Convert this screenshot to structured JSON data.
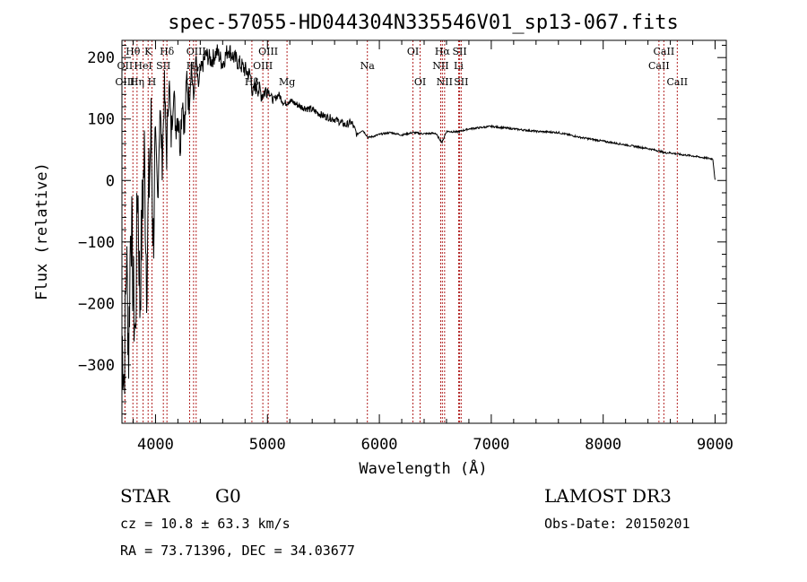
{
  "chart_data": {
    "type": "line",
    "title": "spec-57055-HD044304N335546V01_sp13-067.fits",
    "xlabel": "Wavelength (Å)",
    "ylabel": "Flux (relative)",
    "xlim": [
      3700,
      9100
    ],
    "ylim": [
      -395,
      228
    ],
    "xticks": [
      4000,
      5000,
      6000,
      7000,
      8000,
      9000
    ],
    "yticks": [
      -300,
      -200,
      -100,
      0,
      100,
      200
    ],
    "series": [
      {
        "name": "spectrum",
        "x": [
          3700,
          3720,
          3740,
          3760,
          3780,
          3800,
          3820,
          3840,
          3860,
          3880,
          3900,
          3920,
          3940,
          3960,
          3980,
          4000,
          4020,
          4040,
          4060,
          4080,
          4100,
          4120,
          4140,
          4160,
          4180,
          4200,
          4220,
          4240,
          4260,
          4280,
          4300,
          4320,
          4340,
          4360,
          4380,
          4400,
          4450,
          4500,
          4550,
          4600,
          4650,
          4700,
          4750,
          4800,
          4850,
          4870,
          4900,
          4950,
          5000,
          5050,
          5100,
          5150,
          5200,
          5300,
          5400,
          5500,
          5600,
          5700,
          5750,
          5800,
          5850,
          5900,
          5950,
          6000,
          6100,
          6200,
          6300,
          6400,
          6500,
          6560,
          6600,
          6700,
          6800,
          6900,
          7000,
          7100,
          7200,
          7300,
          7400,
          7500,
          7600,
          7700,
          7800,
          7900,
          8000,
          8100,
          8200,
          8300,
          8400,
          8500,
          8550,
          8600,
          8700,
          8800,
          8900,
          8980,
          9000
        ],
        "y": [
          -250,
          -320,
          -120,
          -280,
          -40,
          -180,
          -260,
          10,
          -200,
          -60,
          40,
          -150,
          -20,
          80,
          -100,
          60,
          -30,
          120,
          30,
          150,
          40,
          170,
          70,
          150,
          90,
          110,
          60,
          140,
          80,
          170,
          120,
          190,
          130,
          200,
          150,
          175,
          205,
          195,
          210,
          190,
          215,
          200,
          190,
          180,
          170,
          140,
          155,
          140,
          150,
          130,
          140,
          125,
          130,
          120,
          115,
          105,
          100,
          90,
          95,
          75,
          82,
          70,
          72,
          75,
          78,
          74,
          78,
          76,
          77,
          62,
          80,
          79,
          84,
          86,
          88,
          86,
          84,
          82,
          80,
          79,
          78,
          74,
          70,
          67,
          64,
          61,
          58,
          55,
          52,
          48,
          45,
          45,
          42,
          40,
          37,
          35,
          0
        ]
      }
    ],
    "lines": [
      {
        "name": "Hθ",
        "w": 3798,
        "row": 1
      },
      {
        "name": "OII",
        "w": 3727,
        "row": 2
      },
      {
        "name": "OIII",
        "w": 3727,
        "row": 3
      },
      {
        "name": "K",
        "w": 3934,
        "row": 1
      },
      {
        "name": "HeI",
        "w": 3889,
        "row": 2
      },
      {
        "name": "Hη",
        "w": 3835,
        "row": 3
      },
      {
        "name": "SII",
        "w": 4070,
        "row": 2
      },
      {
        "name": "H",
        "w": 3968,
        "row": 3
      },
      {
        "name": "Hδ",
        "w": 4102,
        "row": 1
      },
      {
        "name": "OIII",
        "w": 4363,
        "row": 1
      },
      {
        "name": "Hγ",
        "w": 4340,
        "row": 2
      },
      {
        "name": "G",
        "w": 4305,
        "row": 3
      },
      {
        "name": "OIII",
        "w": 5007,
        "row": 1
      },
      {
        "name": "OIII",
        "w": 4959,
        "row": 2
      },
      {
        "name": "Hβ",
        "w": 4861,
        "row": 3
      },
      {
        "name": "Mg",
        "w": 5175,
        "row": 3
      },
      {
        "name": "Na",
        "w": 5893,
        "row": 2
      },
      {
        "name": "OI",
        "w": 6300,
        "row": 1
      },
      {
        "name": "OI",
        "w": 6364,
        "row": 3
      },
      {
        "name": "Hα",
        "w": 6563,
        "row": 1
      },
      {
        "name": "NII",
        "w": 6548,
        "row": 2
      },
      {
        "name": "NII",
        "w": 6583,
        "row": 3
      },
      {
        "name": "SII",
        "w": 6717,
        "row": 1
      },
      {
        "name": "Li",
        "w": 6708,
        "row": 2
      },
      {
        "name": "SII",
        "w": 6731,
        "row": 3
      },
      {
        "name": "CaII",
        "w": 8542,
        "row": 1
      },
      {
        "name": "CaII",
        "w": 8498,
        "row": 2
      },
      {
        "name": "CaII",
        "w": 8662,
        "row": 3
      }
    ]
  },
  "info": {
    "class_label": "STAR",
    "subclass": "G0",
    "survey": "LAMOST DR3",
    "cz": "cz = 10.8 ± 63.3 km/s",
    "obs_date": "Obs-Date: 20150201",
    "radec": "RA =  73.71396, DEC =  34.03677"
  },
  "colors": {
    "line_marker": "#b22222",
    "spectrum": "#000000"
  }
}
